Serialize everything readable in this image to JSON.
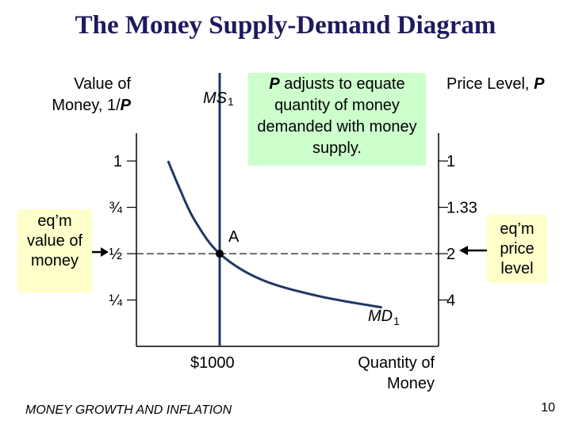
{
  "slide": {
    "title": "The Money Supply-Demand Diagram",
    "footer": "MONEY GROWTH AND INFLATION",
    "page_number": "10"
  },
  "callout": {
    "var": "P",
    "text": " adjusts to equate quantity of money demanded with money supply."
  },
  "annotations": {
    "eq_value": "eq’m value of money",
    "eq_price": "eq’m price level",
    "point_label": "A"
  },
  "chart_data": {
    "type": "line",
    "title": "",
    "xlabel": "Quantity of Money",
    "ylabel_left": {
      "text": "Value of Money, 1/",
      "var": "P"
    },
    "ylabel_right": {
      "text": "Price Level, ",
      "var": "P"
    },
    "yticks_left": [
      "1",
      "¾",
      "½",
      "¼"
    ],
    "yticks_left_values": [
      1,
      0.75,
      0.5,
      0.25
    ],
    "yticks_right": [
      "1",
      "1.33",
      "2",
      "4"
    ],
    "ylim": [
      0,
      1.15
    ],
    "x_tick": {
      "label": "$1000",
      "value": 1000
    },
    "series": [
      {
        "name": "MS",
        "sub": "1",
        "kind": "vertical",
        "x": 1000,
        "color": "#1f3864"
      },
      {
        "name": "MD",
        "sub": "1",
        "kind": "curve",
        "color": "#1f3864",
        "points": [
          [
            380,
            1.0
          ],
          [
            520,
            0.85
          ],
          [
            700,
            0.68
          ],
          [
            1000,
            0.5
          ],
          [
            1500,
            0.36
          ],
          [
            2200,
            0.27
          ],
          [
            2950,
            0.21
          ]
        ]
      }
    ],
    "equilibrium": {
      "x": 1000,
      "y": 0.5
    },
    "colors": {
      "curve": "#1f3864",
      "axis": "#000000",
      "dashes": "#000000"
    }
  }
}
